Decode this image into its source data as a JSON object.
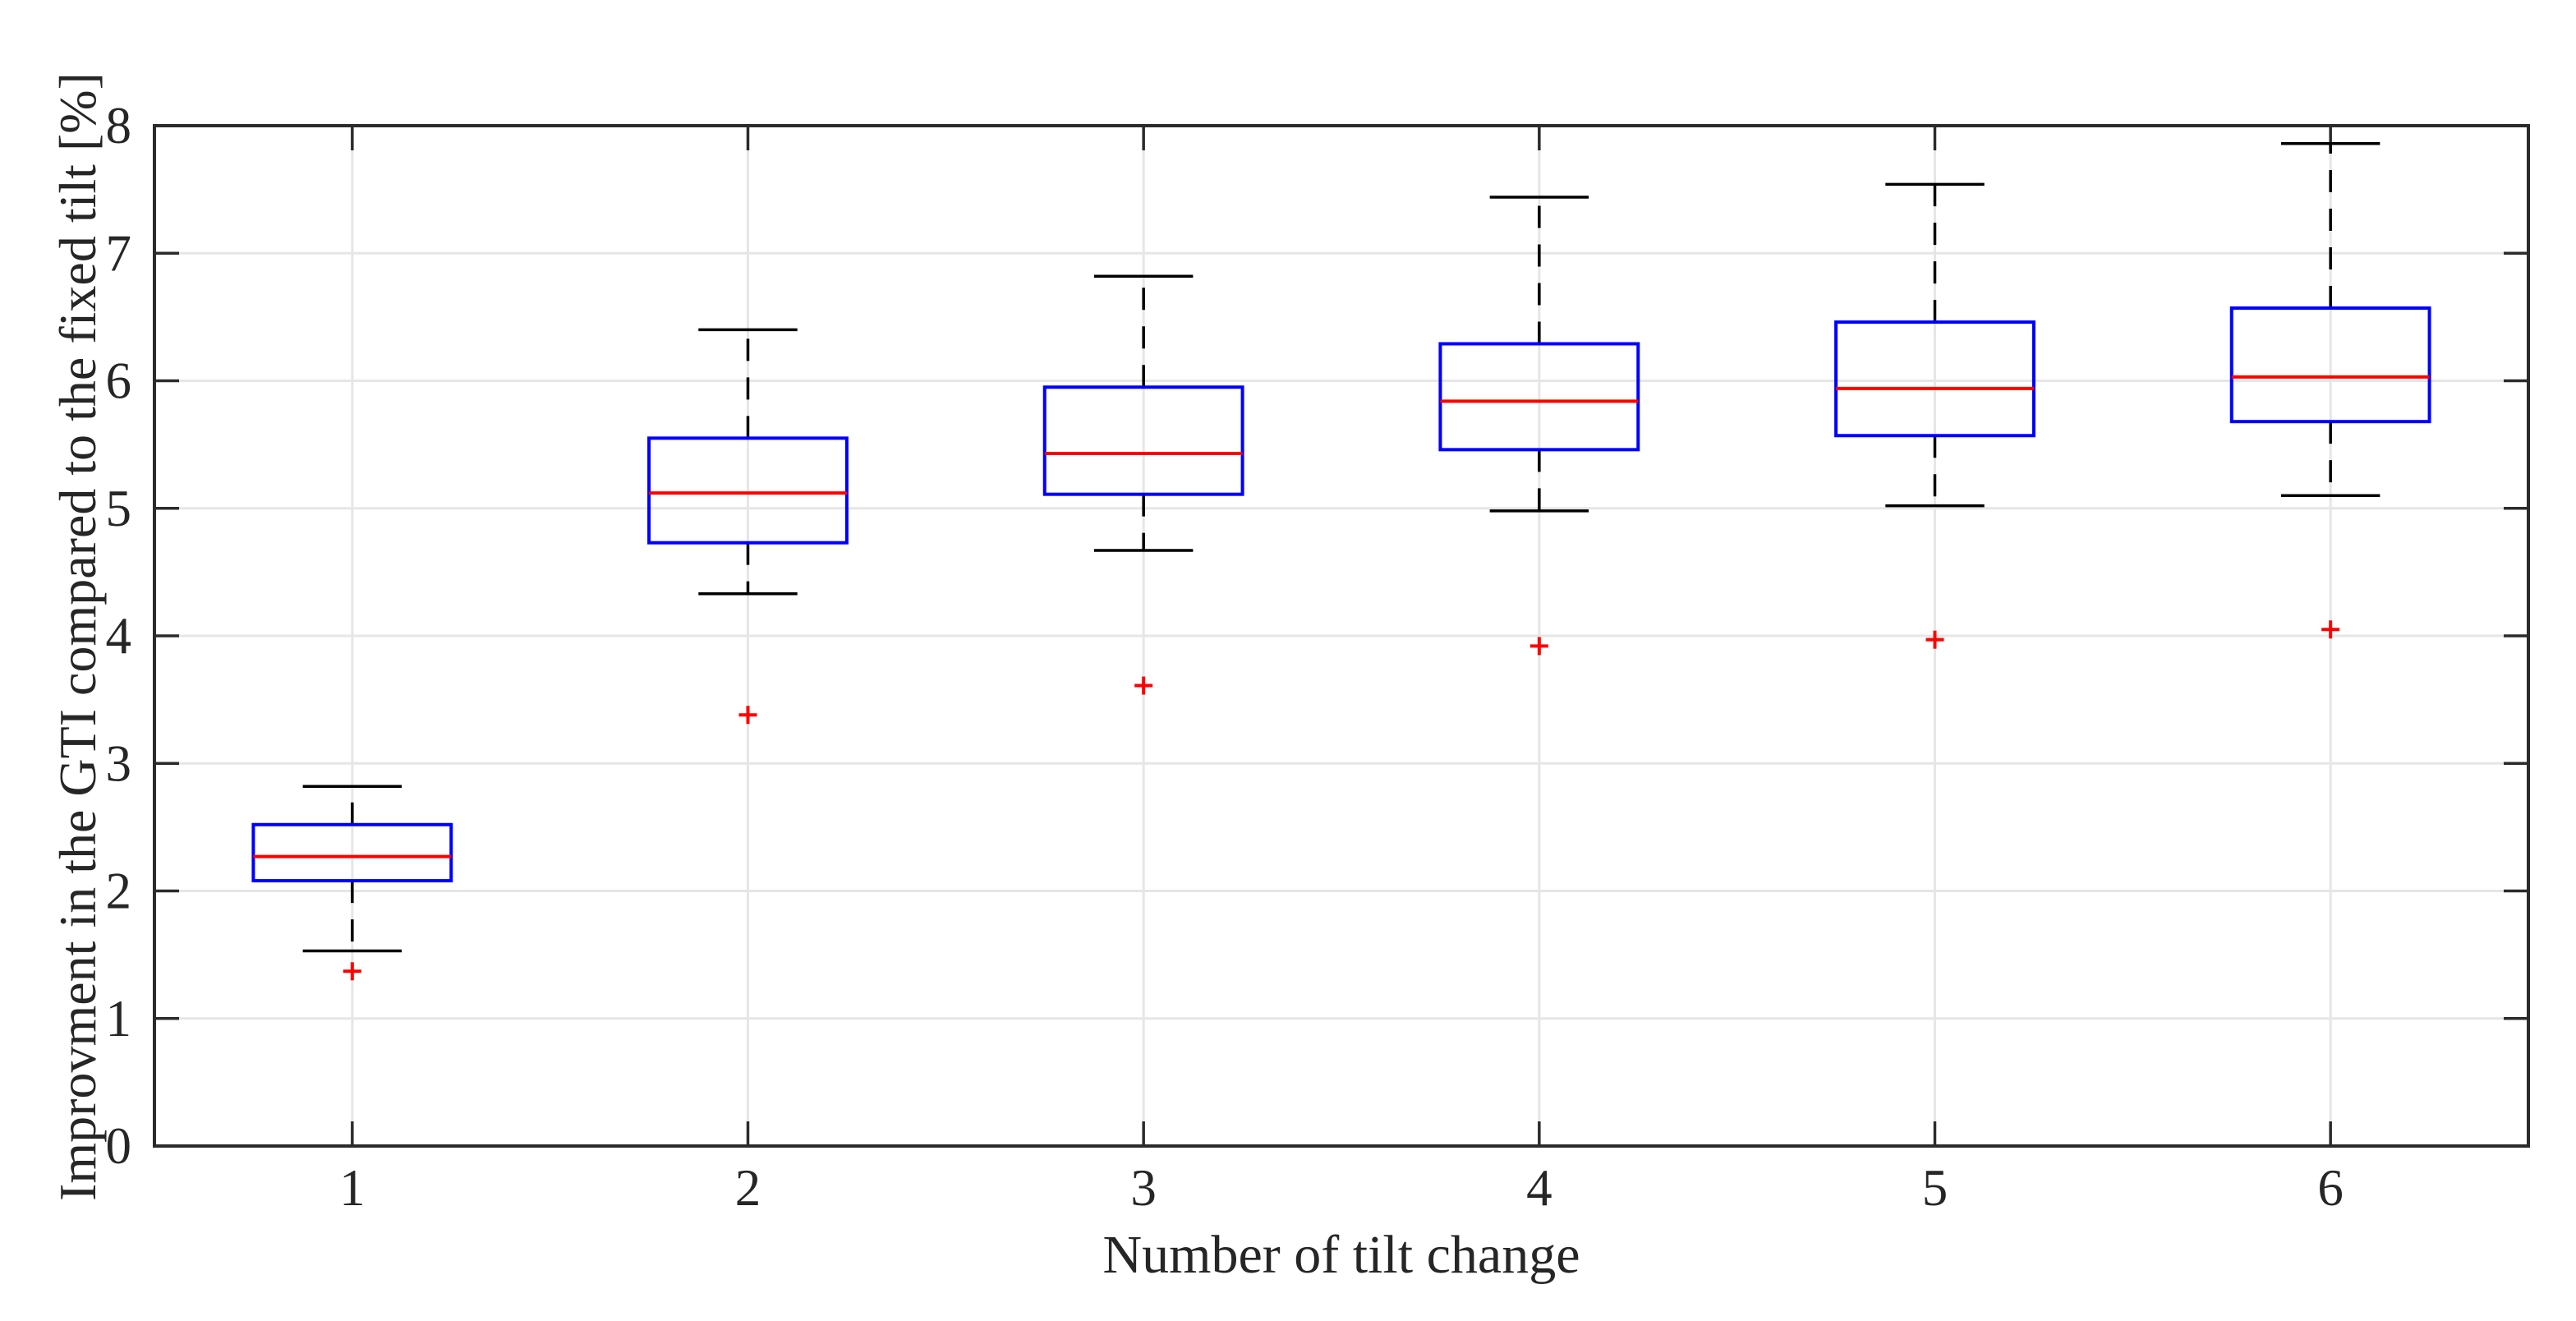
{
  "chart_data": {
    "type": "boxplot",
    "title": "",
    "xlabel": "Number of tilt change",
    "ylabel": "Improvment in the GTI compared to the fixed tilt [%]",
    "x_ticks": [
      1,
      2,
      3,
      4,
      5,
      6
    ],
    "y_ticks": [
      0,
      1,
      2,
      3,
      4,
      5,
      6,
      7,
      8
    ],
    "xlim": [
      0.5,
      6.5
    ],
    "ylim": [
      0,
      8
    ],
    "grid": true,
    "legend": "none",
    "box_half_width_units": 0.25,
    "cap_half_width_units": 0.125,
    "colors": {
      "box": "#0000ff",
      "median": "#ff0000",
      "whisker": "#000000",
      "cap": "#000000",
      "outlier": "#ff0000",
      "grid": "#e6e6e6",
      "axis": "#2b2b2b",
      "text": "#262626",
      "background": "#ffffff"
    },
    "boxes": [
      {
        "x": 1,
        "whisker_low": 1.53,
        "q1": 2.08,
        "median": 2.27,
        "q3": 2.52,
        "whisker_high": 2.82,
        "outliers": [
          1.37
        ]
      },
      {
        "x": 2,
        "whisker_low": 4.33,
        "q1": 4.73,
        "median": 5.12,
        "q3": 5.55,
        "whisker_high": 6.4,
        "outliers": [
          3.38
        ]
      },
      {
        "x": 3,
        "whisker_low": 4.67,
        "q1": 5.11,
        "median": 5.43,
        "q3": 5.95,
        "whisker_high": 6.82,
        "outliers": [
          3.61
        ]
      },
      {
        "x": 4,
        "whisker_low": 4.98,
        "q1": 5.46,
        "median": 5.84,
        "q3": 6.29,
        "whisker_high": 7.44,
        "outliers": [
          3.92
        ]
      },
      {
        "x": 5,
        "whisker_low": 5.02,
        "q1": 5.57,
        "median": 5.94,
        "q3": 6.46,
        "whisker_high": 7.54,
        "outliers": [
          3.97
        ]
      },
      {
        "x": 6,
        "whisker_low": 5.1,
        "q1": 5.68,
        "median": 6.03,
        "q3": 6.57,
        "whisker_high": 7.86,
        "outliers": [
          4.05
        ]
      }
    ]
  }
}
